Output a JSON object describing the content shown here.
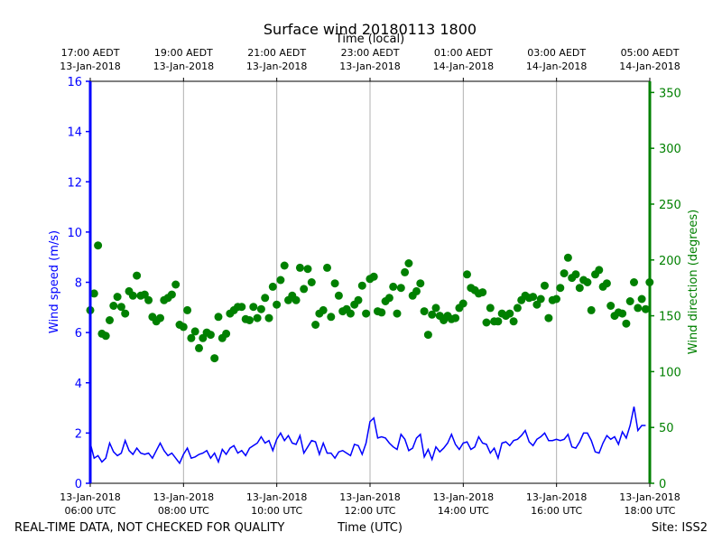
{
  "chart_data": {
    "type": "line+scatter",
    "title": "Surface wind 20180113 1800",
    "top_axis_label": "Time (local)",
    "bottom_axis_label": "Time (UTC)",
    "footer_left": "REAL-TIME DATA, NOT CHECKED FOR QUALITY",
    "footer_right": "Site: ISS2",
    "x_range_hours_utc": [
      6,
      18
    ],
    "y_left": {
      "label": "Wind speed (m/s)",
      "lim": [
        0,
        16
      ],
      "ticks": [
        "0",
        "2",
        "4",
        "6",
        "8",
        "10",
        "12",
        "14",
        "16"
      ],
      "color": "#0000ff"
    },
    "y_right": {
      "label": "Wind direction (degrees)",
      "lim": [
        0,
        360
      ],
      "ticks": [
        "0",
        "50",
        "100",
        "150",
        "200",
        "250",
        "300",
        "350"
      ],
      "color": "#008000"
    },
    "bottom_ticks": [
      {
        "hour": 6,
        "line1": "13-Jan-2018",
        "line2": "06:00 UTC"
      },
      {
        "hour": 8,
        "line1": "13-Jan-2018",
        "line2": "08:00 UTC"
      },
      {
        "hour": 10,
        "line1": "13-Jan-2018",
        "line2": "10:00 UTC"
      },
      {
        "hour": 12,
        "line1": "13-Jan-2018",
        "line2": "12:00 UTC"
      },
      {
        "hour": 14,
        "line1": "13-Jan-2018",
        "line2": "14:00 UTC"
      },
      {
        "hour": 16,
        "line1": "13-Jan-2018",
        "line2": "16:00 UTC"
      },
      {
        "hour": 18,
        "line1": "13-Jan-2018",
        "line2": "18:00 UTC"
      }
    ],
    "top_ticks": [
      {
        "hour": 6,
        "line1": "17:00 AEDT",
        "line2": "13-Jan-2018"
      },
      {
        "hour": 8,
        "line1": "19:00 AEDT",
        "line2": "13-Jan-2018"
      },
      {
        "hour": 10,
        "line1": "21:00 AEDT",
        "line2": "13-Jan-2018"
      },
      {
        "hour": 12,
        "line1": "23:00 AEDT",
        "line2": "13-Jan-2018"
      },
      {
        "hour": 14,
        "line1": "01:00 AEDT",
        "line2": "14-Jan-2018"
      },
      {
        "hour": 16,
        "line1": "03:00 AEDT",
        "line2": "14-Jan-2018"
      },
      {
        "hour": 18,
        "line1": "05:00 AEDT",
        "line2": "14-Jan-2018"
      }
    ],
    "series": [
      {
        "name": "Wind speed",
        "kind": "line",
        "axis": "left",
        "color": "#0000ff",
        "x_start_hour": 6,
        "x_step_hours": 0.0833,
        "values": [
          1.6,
          1.0,
          1.1,
          0.85,
          1.0,
          1.6,
          1.25,
          1.1,
          1.2,
          1.7,
          1.3,
          1.15,
          1.4,
          1.2,
          1.15,
          1.2,
          1.0,
          1.3,
          1.6,
          1.3,
          1.1,
          1.2,
          1.0,
          0.8,
          1.15,
          1.4,
          1.0,
          1.05,
          1.15,
          1.2,
          1.3,
          1.0,
          1.2,
          0.85,
          1.35,
          1.15,
          1.4,
          1.5,
          1.2,
          1.3,
          1.1,
          1.4,
          1.5,
          1.6,
          1.85,
          1.6,
          1.7,
          1.3,
          1.75,
          2.0,
          1.7,
          1.9,
          1.6,
          1.55,
          1.9,
          1.2,
          1.45,
          1.7,
          1.65,
          1.15,
          1.6,
          1.2,
          1.2,
          1.0,
          1.25,
          1.3,
          1.2,
          1.1,
          1.55,
          1.5,
          1.15,
          1.6,
          2.45,
          2.6,
          1.8,
          1.85,
          1.8,
          1.6,
          1.45,
          1.35,
          1.95,
          1.75,
          1.3,
          1.4,
          1.8,
          1.95,
          1.05,
          1.35,
          0.95,
          1.45,
          1.25,
          1.4,
          1.6,
          1.95,
          1.55,
          1.35,
          1.6,
          1.65,
          1.35,
          1.45,
          1.85,
          1.6,
          1.55,
          1.2,
          1.4,
          1.0,
          1.6,
          1.65,
          1.5,
          1.7,
          1.75,
          1.9,
          2.1,
          1.65,
          1.5,
          1.75,
          1.85,
          2.0,
          1.7,
          1.7,
          1.75,
          1.7,
          1.75,
          1.95,
          1.45,
          1.4,
          1.65,
          2.0,
          2.0,
          1.7,
          1.25,
          1.2,
          1.6,
          1.9,
          1.75,
          1.85,
          1.55,
          2.05,
          1.8,
          2.3,
          3.05,
          2.1,
          2.3,
          2.3
        ]
      },
      {
        "name": "Wind direction",
        "kind": "scatter",
        "axis": "right",
        "color": "#008000",
        "x_start_hour": 6,
        "x_step_hours": 0.0833,
        "values": [
          155,
          170,
          213,
          134,
          132,
          146,
          159,
          167,
          158,
          152,
          172,
          168,
          186,
          168,
          169,
          164,
          149,
          145,
          148,
          164,
          166,
          169,
          178,
          142,
          140,
          155,
          130,
          136,
          121,
          130,
          135,
          133,
          112,
          149,
          130,
          134,
          152,
          155,
          158,
          158,
          147,
          146,
          158,
          148,
          156,
          166,
          148,
          176,
          160,
          182,
          195,
          164,
          168,
          164,
          193,
          174,
          192,
          180,
          142,
          152,
          155,
          193,
          149,
          179,
          168,
          154,
          156,
          152,
          160,
          164,
          177,
          152,
          183,
          185,
          154,
          153,
          163,
          166,
          176,
          152,
          175,
          189,
          197,
          168,
          172,
          179,
          154,
          133,
          151,
          157,
          150,
          146,
          150,
          147,
          148,
          157,
          161,
          187,
          175,
          173,
          170,
          171,
          144,
          157,
          145,
          145,
          152,
          150,
          152,
          145,
          157,
          164,
          168,
          166,
          167,
          160,
          165,
          177,
          148,
          164,
          165,
          175,
          188,
          202,
          184,
          187,
          175,
          182,
          180,
          155,
          187,
          191,
          176,
          179,
          159,
          150,
          153,
          152,
          143,
          163,
          180,
          157,
          165,
          156,
          180
        ]
      }
    ]
  }
}
